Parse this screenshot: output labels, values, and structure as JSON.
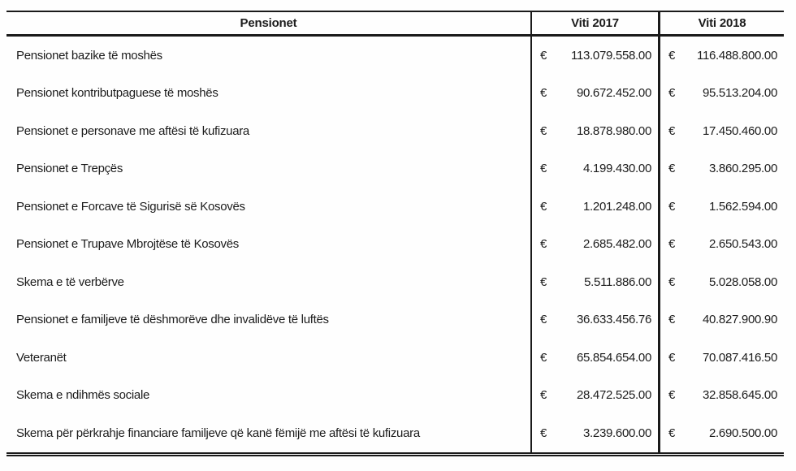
{
  "table": {
    "currency_symbol": "€",
    "header": {
      "col1": "Pensionet",
      "col2": "Viti 2017",
      "col3": "Viti 2018"
    },
    "rows": [
      {
        "label": "Pensionet bazike të moshës",
        "viti_2017": "113.079.558.00",
        "viti_2018": "116.488.800.00"
      },
      {
        "label": "Pensionet kontributpaguese të moshës",
        "viti_2017": "90.672.452.00",
        "viti_2018": "95.513.204.00"
      },
      {
        "label": "Pensionet e personave me aftësi të kufizuara",
        "viti_2017": "18.878.980.00",
        "viti_2018": "17.450.460.00"
      },
      {
        "label": "Pensionet e Trepçës",
        "viti_2017": "4.199.430.00",
        "viti_2018": "3.860.295.00"
      },
      {
        "label": "Pensionet e Forcave të Sigurisë së Kosovës",
        "viti_2017": "1.201.248.00",
        "viti_2018": "1.562.594.00"
      },
      {
        "label": "Pensionet e Trupave Mbrojtëse të Kosovës",
        "viti_2017": "2.685.482.00",
        "viti_2018": "2.650.543.00"
      },
      {
        "label": "Skema e të verbërve",
        "viti_2017": "5.511.886.00",
        "viti_2018": "5.028.058.00"
      },
      {
        "label": "Pensionet e familjeve të dëshmorëve dhe invalidëve të luftës",
        "viti_2017": "36.633.456.76",
        "viti_2018": "40.827.900.90"
      },
      {
        "label": "Veteranët",
        "viti_2017": "65.854.654.00",
        "viti_2018": "70.087.416.50"
      },
      {
        "label": "Skema e ndihmës sociale",
        "viti_2017": "28.472.525.00",
        "viti_2018": "32.858.645.00"
      },
      {
        "label": "Skema për përkrahje financiare familjeve që kanë fëmijë me aftësi të kufizuara",
        "viti_2017": "3.239.600.00",
        "viti_2018": "2.690.500.00"
      }
    ]
  }
}
